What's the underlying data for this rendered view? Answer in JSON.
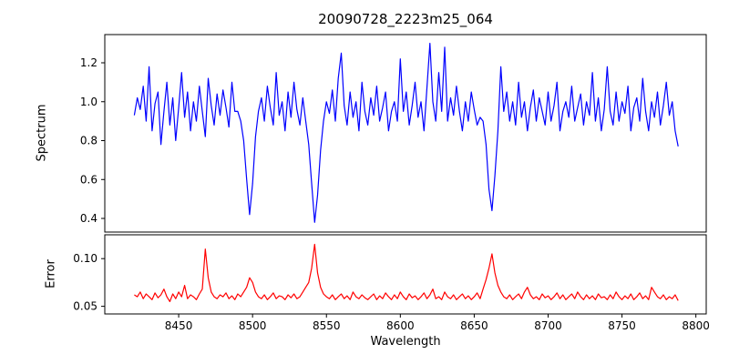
{
  "chart_data": {
    "type": "line",
    "title": "20090728_2223m25_064",
    "xlabel": "Wavelength",
    "x_start": 8420,
    "x_step": 2,
    "x_axis": {
      "min": 8400,
      "max": 8807,
      "ticks": [
        8450,
        8500,
        8550,
        8600,
        8650,
        8700,
        8750,
        8800
      ]
    },
    "panels": [
      {
        "ylabel": "Spectrum",
        "color": "#0000ff",
        "ylim": [
          0.33,
          1.345
        ],
        "yticks": [
          0.4,
          0.6,
          0.8,
          1.0,
          1.2
        ],
        "ytick_labels": [
          "0.4",
          "0.6",
          "0.8",
          "1.0",
          "1.2"
        ],
        "values": [
          0.93,
          1.02,
          0.96,
          1.08,
          0.9,
          1.18,
          0.85,
          0.99,
          1.05,
          0.78,
          0.95,
          1.1,
          0.88,
          1.02,
          0.8,
          0.97,
          1.15,
          0.92,
          1.05,
          0.85,
          1.0,
          0.9,
          1.08,
          0.95,
          0.82,
          1.12,
          0.98,
          0.88,
          1.04,
          0.93,
          1.06,
          0.97,
          0.87,
          1.1,
          0.95,
          0.95,
          0.9,
          0.8,
          0.6,
          0.42,
          0.58,
          0.82,
          0.95,
          1.02,
          0.9,
          1.08,
          0.97,
          0.88,
          1.15,
          0.93,
          1.0,
          0.85,
          1.05,
          0.92,
          1.1,
          0.96,
          0.88,
          1.02,
          0.9,
          0.78,
          0.58,
          0.38,
          0.52,
          0.75,
          0.9,
          1.0,
          0.94,
          1.06,
          0.9,
          1.12,
          1.25,
          0.98,
          0.88,
          1.05,
          0.92,
          1.0,
          0.85,
          1.1,
          0.95,
          0.88,
          1.02,
          0.93,
          1.08,
          0.9,
          0.97,
          1.05,
          0.85,
          0.95,
          1.0,
          0.9,
          1.22,
          0.95,
          1.05,
          0.88,
          0.98,
          1.1,
          0.92,
          1.0,
          0.85,
          1.07,
          1.3,
          1.0,
          0.9,
          1.15,
          0.95,
          1.28,
          0.9,
          1.02,
          0.93,
          1.08,
          0.95,
          0.85,
          1.0,
          0.9,
          1.05,
          0.96,
          0.88,
          0.92,
          0.9,
          0.78,
          0.55,
          0.44,
          0.62,
          0.85,
          1.18,
          0.95,
          1.05,
          0.9,
          1.0,
          0.88,
          1.1,
          0.92,
          1.0,
          0.85,
          0.97,
          1.06,
          0.9,
          1.02,
          0.95,
          0.88,
          1.05,
          0.9,
          0.98,
          1.1,
          0.85,
          0.95,
          1.0,
          0.92,
          1.08,
          0.9,
          0.97,
          1.04,
          0.88,
          1.0,
          0.93,
          1.15,
          0.9,
          1.02,
          0.85,
          0.96,
          1.18,
          0.95,
          0.88,
          1.05,
          0.9,
          1.0,
          0.94,
          1.08,
          0.85,
          0.97,
          1.02,
          0.9,
          1.12,
          0.95,
          0.85,
          1.0,
          0.92,
          1.05,
          0.88,
          0.98,
          1.1,
          0.93,
          1.0,
          0.85,
          0.77
        ]
      },
      {
        "ylabel": "Error",
        "color": "#ff0000",
        "ylim": [
          0.042,
          0.125
        ],
        "yticks": [
          0.05,
          0.1
        ],
        "ytick_labels": [
          "0.05",
          "0.10"
        ],
        "values": [
          0.062,
          0.06,
          0.065,
          0.058,
          0.063,
          0.06,
          0.057,
          0.064,
          0.059,
          0.062,
          0.068,
          0.06,
          0.055,
          0.063,
          0.058,
          0.065,
          0.06,
          0.072,
          0.058,
          0.062,
          0.06,
          0.057,
          0.063,
          0.068,
          0.11,
          0.08,
          0.065,
          0.06,
          0.058,
          0.062,
          0.06,
          0.064,
          0.058,
          0.061,
          0.057,
          0.063,
          0.06,
          0.065,
          0.07,
          0.08,
          0.075,
          0.065,
          0.06,
          0.058,
          0.062,
          0.057,
          0.06,
          0.064,
          0.058,
          0.061,
          0.06,
          0.057,
          0.062,
          0.059,
          0.063,
          0.058,
          0.06,
          0.065,
          0.07,
          0.075,
          0.09,
          0.115,
          0.085,
          0.07,
          0.063,
          0.06,
          0.058,
          0.062,
          0.057,
          0.06,
          0.063,
          0.058,
          0.061,
          0.057,
          0.065,
          0.06,
          0.058,
          0.062,
          0.059,
          0.057,
          0.06,
          0.063,
          0.057,
          0.061,
          0.058,
          0.064,
          0.06,
          0.057,
          0.062,
          0.058,
          0.065,
          0.06,
          0.057,
          0.063,
          0.059,
          0.061,
          0.057,
          0.06,
          0.064,
          0.058,
          0.062,
          0.068,
          0.058,
          0.06,
          0.057,
          0.065,
          0.06,
          0.058,
          0.062,
          0.057,
          0.06,
          0.063,
          0.058,
          0.061,
          0.057,
          0.06,
          0.064,
          0.058,
          0.068,
          0.078,
          0.09,
          0.105,
          0.085,
          0.072,
          0.065,
          0.06,
          0.058,
          0.062,
          0.057,
          0.06,
          0.063,
          0.058,
          0.065,
          0.07,
          0.062,
          0.058,
          0.06,
          0.057,
          0.063,
          0.059,
          0.061,
          0.057,
          0.06,
          0.064,
          0.058,
          0.062,
          0.057,
          0.06,
          0.063,
          0.058,
          0.065,
          0.06,
          0.057,
          0.062,
          0.058,
          0.061,
          0.057,
          0.063,
          0.059,
          0.06,
          0.057,
          0.062,
          0.058,
          0.065,
          0.06,
          0.057,
          0.061,
          0.058,
          0.063,
          0.057,
          0.06,
          0.064,
          0.058,
          0.061,
          0.057,
          0.07,
          0.065,
          0.06,
          0.058,
          0.062,
          0.057,
          0.06,
          0.058,
          0.062,
          0.056
        ]
      }
    ]
  }
}
